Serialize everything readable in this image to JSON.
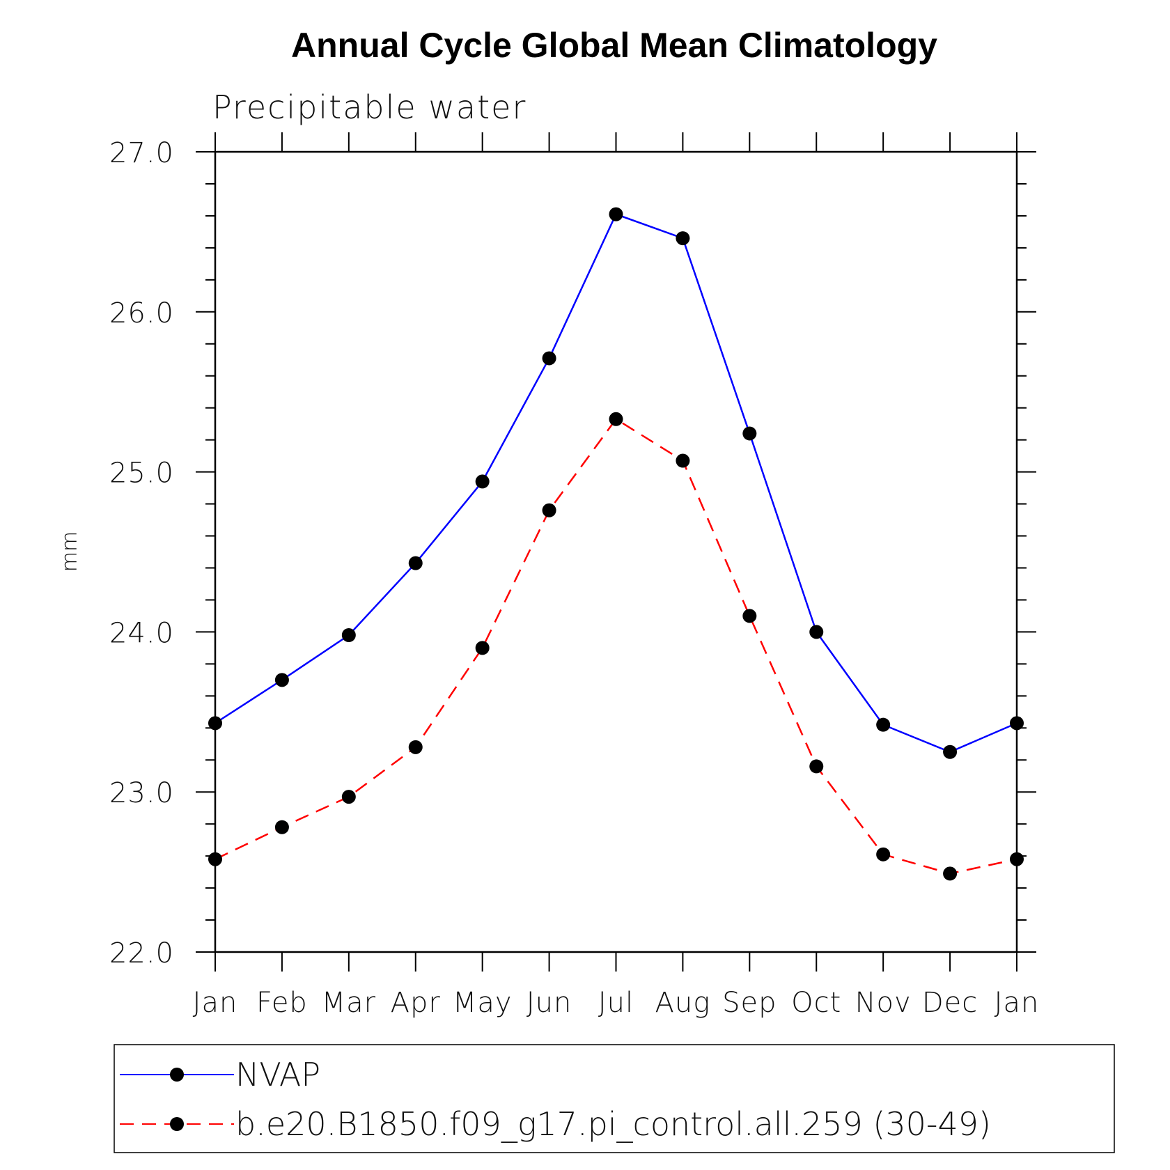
{
  "chart_data": {
    "type": "line",
    "title": "Annual Cycle Global Mean Climatology",
    "subtitle": "Precipitable water",
    "xlabel": "",
    "ylabel": "mm",
    "categories": [
      "Jan",
      "Feb",
      "Mar",
      "Apr",
      "May",
      "Jun",
      "Jul",
      "Aug",
      "Sep",
      "Oct",
      "Nov",
      "Dec",
      "Jan"
    ],
    "ylim": [
      22.0,
      27.0
    ],
    "yticks": [
      "22.0",
      "23.0",
      "24.0",
      "25.0",
      "26.0",
      "27.0"
    ],
    "grid": false,
    "legend_position": "bottom",
    "series": [
      {
        "name": "NVAP",
        "color": "#0000ff",
        "line_style": "solid",
        "marker": "filled-circle",
        "values": [
          23.43,
          23.7,
          23.98,
          24.43,
          24.94,
          25.71,
          26.61,
          26.46,
          25.24,
          24.0,
          23.42,
          23.25,
          23.43
        ]
      },
      {
        "name": "b.e20.B1850.f09_g17.pi_control.all.259 (30-49)",
        "color": "#ff0000",
        "line_style": "dashed",
        "marker": "filled-circle",
        "values": [
          22.58,
          22.78,
          22.97,
          23.28,
          23.9,
          24.76,
          25.33,
          25.07,
          24.1,
          23.16,
          22.61,
          22.49,
          22.58
        ]
      }
    ]
  }
}
